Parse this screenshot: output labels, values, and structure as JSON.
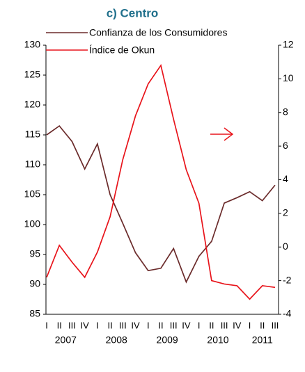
{
  "chart_data": {
    "type": "line",
    "title": "c) Centro",
    "categories": [
      "I",
      "II",
      "III",
      "IV",
      "I",
      "II",
      "III",
      "IV",
      "I",
      "II",
      "III",
      "IV",
      "I",
      "II",
      "III",
      "IV",
      "I",
      "II",
      "III"
    ],
    "years": [
      "2007",
      "2008",
      "2009",
      "2010",
      "2011"
    ],
    "series": [
      {
        "name": "Confianza de los Consumidores",
        "color": "#6b2b2b",
        "axis": "y",
        "values": [
          115,
          116.5,
          113.9,
          109.3,
          113.5,
          105,
          100.2,
          95.3,
          92.3,
          92.7,
          96,
          90.4,
          94.7,
          97.2,
          103.6,
          104.5,
          105.5,
          104,
          106.6
        ]
      },
      {
        "name": "Índice de Okun",
        "color": "#e8141b",
        "axis": "y2",
        "values": [
          -1.8,
          0.1,
          -0.9,
          -1.8,
          -0.3,
          1.8,
          5.2,
          7.8,
          9.7,
          10.8,
          7.6,
          4.6,
          2.6,
          -2.0,
          -2.2,
          -2.3,
          -3.1,
          -2.3,
          -2.4
        ]
      }
    ],
    "ylim": [
      85,
      130
    ],
    "yticks": [
      85,
      90,
      95,
      100,
      105,
      110,
      115,
      120,
      125,
      130
    ],
    "y2lim": [
      -4,
      12
    ],
    "y2ticks": [
      -4,
      -2,
      0,
      2,
      4,
      6,
      8,
      10,
      12
    ]
  }
}
